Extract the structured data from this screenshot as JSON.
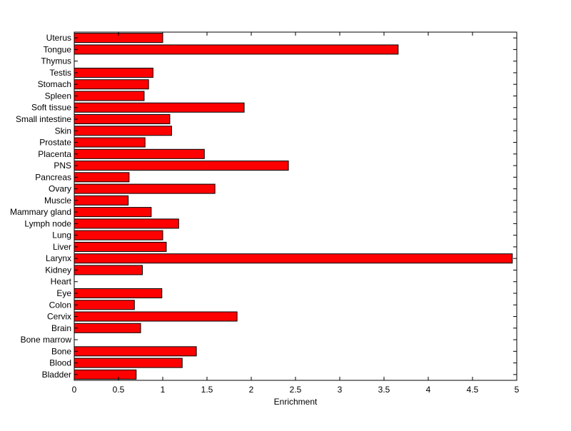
{
  "chart_data": {
    "type": "bar",
    "orientation": "horizontal",
    "title": "",
    "xlabel": "Enrichment",
    "ylabel": "",
    "xlim": [
      0,
      5
    ],
    "xticks": [
      "0",
      "0.5",
      "1",
      "1.5",
      "2",
      "2.5",
      "3",
      "3.5",
      "4",
      "4.5",
      "5"
    ],
    "grid": false,
    "legend": "none",
    "colors": {
      "bar_fill": "#ff0000",
      "bar_edge": "#000000",
      "axes": "#000000",
      "background": "#ffffff"
    },
    "categories": [
      "Uterus",
      "Tongue",
      "Thymus",
      "Testis",
      "Stomach",
      "Spleen",
      "Soft tissue",
      "Small intestine",
      "Skin",
      "Prostate",
      "Placenta",
      "PNS",
      "Pancreas",
      "Ovary",
      "Muscle",
      "Mammary gland",
      "Lymph node",
      "Lung",
      "Liver",
      "Larynx",
      "Kidney",
      "Heart",
      "Eye",
      "Colon",
      "Cervix",
      "Brain",
      "Bone marrow",
      "Bone",
      "Blood",
      "Bladder"
    ],
    "values": [
      1.0,
      3.66,
      0,
      0.89,
      0.84,
      0.79,
      1.92,
      1.08,
      1.1,
      0.8,
      1.47,
      2.42,
      0.62,
      1.59,
      0.61,
      0.87,
      1.18,
      1.0,
      1.04,
      4.95,
      0.77,
      0,
      0.99,
      0.68,
      1.84,
      0.75,
      0,
      1.38,
      1.22,
      0.7
    ]
  }
}
